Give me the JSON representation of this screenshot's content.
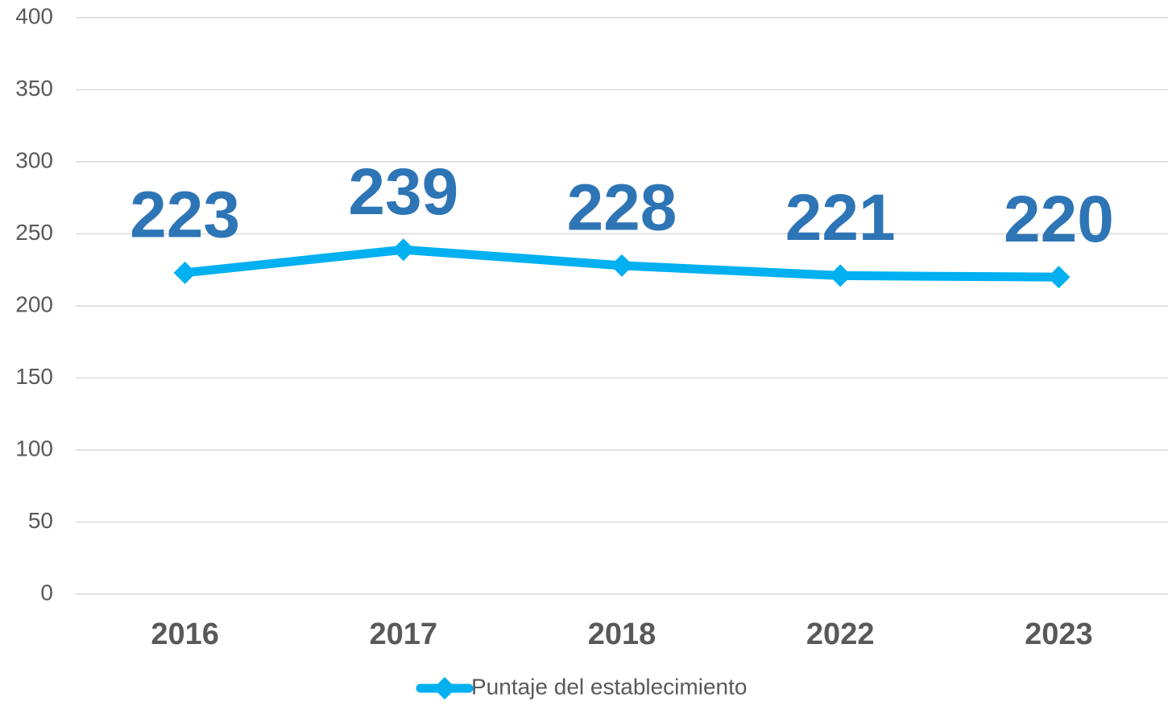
{
  "chart_data": {
    "type": "line",
    "categories": [
      "2016",
      "2017",
      "2018",
      "2022",
      "2023"
    ],
    "series": [
      {
        "name": "Puntaje del establecimiento",
        "color": "#00b0f0",
        "values": [
          223,
          239,
          228,
          221,
          220
        ]
      }
    ],
    "data_label_color": "#2e75b6",
    "ylim": [
      0,
      400
    ],
    "yticks": [
      0,
      50,
      100,
      150,
      200,
      250,
      300,
      350,
      400
    ],
    "grid": true,
    "legend": "bottom"
  }
}
